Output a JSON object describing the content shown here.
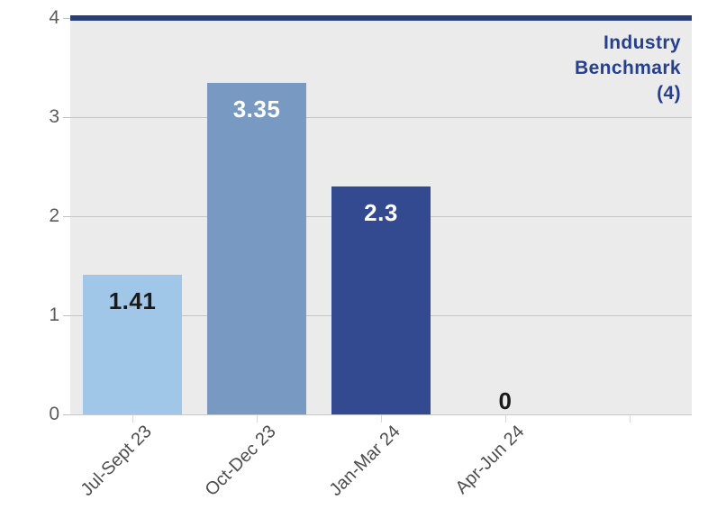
{
  "chart_data": {
    "type": "bar",
    "title": "",
    "xlabel": "",
    "ylabel": "",
    "categories": [
      "Jul-Sept 23",
      "Oct-Dec 23",
      "Jan-Mar 24",
      "Apr-Jun 24"
    ],
    "values": [
      1.41,
      3.35,
      2.3,
      0
    ],
    "data_labels": [
      "1.41",
      "3.35",
      "2.3",
      "0"
    ],
    "bar_colors": [
      "#A0C6E8",
      "#7799C2",
      "#334A90",
      "#A0C6E8"
    ],
    "data_label_colors": [
      "#1A1A1A",
      "#FFFFFF",
      "#FFFFFF",
      "#1A1A1A"
    ],
    "ylim": [
      0,
      4
    ],
    "yticks": [
      "0",
      "1",
      "2",
      "3",
      "4"
    ],
    "band_count": 5,
    "grid": true,
    "legend_position": "none",
    "plot_background": "#EBEBEB",
    "benchmark": {
      "value": 4,
      "line_color": "#293F7D",
      "label_color": "#26408D",
      "label_lines": [
        "Industry",
        "Benchmark",
        "(4)"
      ]
    }
  }
}
